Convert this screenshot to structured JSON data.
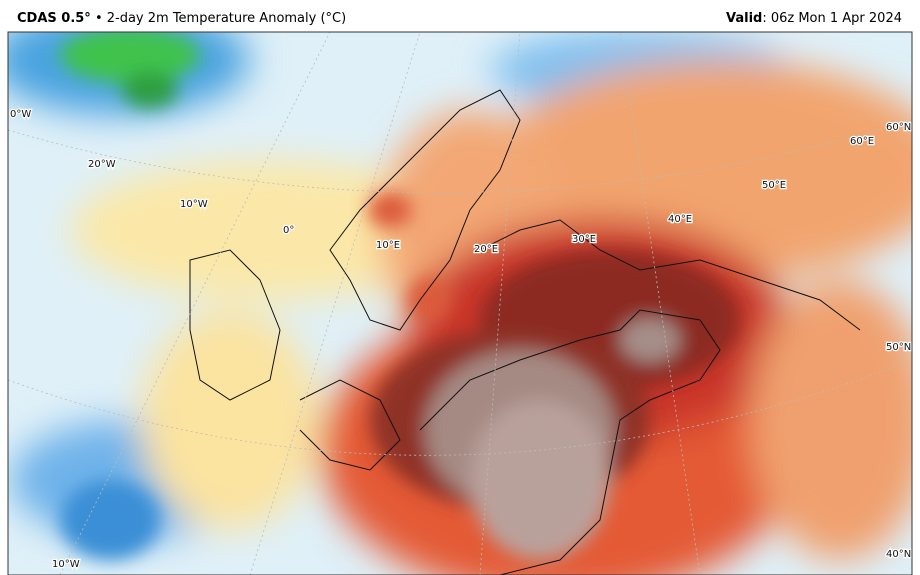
{
  "header": {
    "model": "CDAS 0.5°",
    "product": "• 2-day 2m Temperature Anomaly (°C)",
    "valid_label": "Valid",
    "valid_value": ": 06z Mon 1 Apr 2024"
  },
  "map": {
    "grid_labels": [
      "0°W",
      "20°W",
      "10°W",
      "0°",
      "10°E",
      "20°E",
      "30°E",
      "40°E",
      "50°E",
      "60°E",
      "60°N",
      "50°N",
      "40°N",
      "10°W"
    ]
  }
}
